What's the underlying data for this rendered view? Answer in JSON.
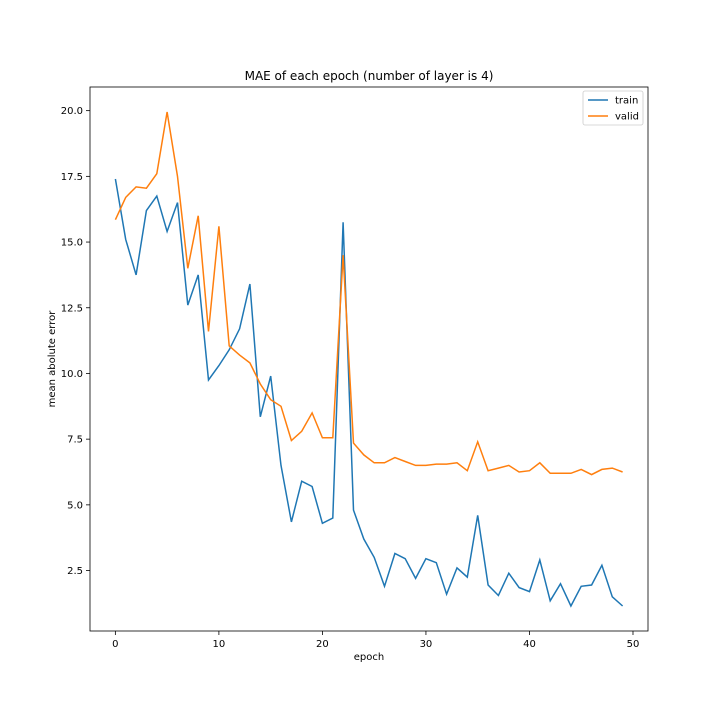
{
  "chart_data": {
    "type": "line",
    "title": "MAE of each epoch (number of layer is 4)",
    "xlabel": "epoch",
    "ylabel": "mean abolute error",
    "xlim": [
      -2.45,
      51.45
    ],
    "ylim": [
      0.2,
      20.9
    ],
    "xticks": [
      0,
      10,
      20,
      30,
      40,
      50
    ],
    "yticks": [
      2.5,
      5.0,
      7.5,
      10.0,
      12.5,
      15.0,
      17.5,
      20.0
    ],
    "ytick_labels": [
      "2.5",
      "5.0",
      "7.5",
      "10.0",
      "12.5",
      "15.0",
      "17.5",
      "20.0"
    ],
    "grid": false,
    "legend_position": "top-right",
    "x": [
      0,
      1,
      2,
      3,
      4,
      5,
      6,
      7,
      8,
      9,
      10,
      11,
      12,
      13,
      14,
      15,
      16,
      17,
      18,
      19,
      20,
      21,
      22,
      23,
      24,
      25,
      26,
      27,
      28,
      29,
      30,
      31,
      32,
      33,
      34,
      35,
      36,
      37,
      38,
      39,
      40,
      41,
      42,
      43,
      44,
      45,
      46,
      47,
      48,
      49
    ],
    "series": [
      {
        "name": "train",
        "color": "#1f77b4",
        "values": [
          17.4,
          15.1,
          13.75,
          16.2,
          16.75,
          15.4,
          16.5,
          12.6,
          13.75,
          9.75,
          10.3,
          10.9,
          11.7,
          13.4,
          8.35,
          9.9,
          6.5,
          4.35,
          5.9,
          5.7,
          4.3,
          4.5,
          15.75,
          4.8,
          3.7,
          3.0,
          1.9,
          3.15,
          2.95,
          2.2,
          2.95,
          2.8,
          1.6,
          2.6,
          2.25,
          4.6,
          1.95,
          1.55,
          2.4,
          1.85,
          1.7,
          2.9,
          1.35,
          2.0,
          1.15,
          1.9,
          1.95,
          2.7,
          1.5,
          1.15
        ]
      },
      {
        "name": "valid",
        "color": "#ff7f0e",
        "values": [
          15.85,
          16.7,
          17.1,
          17.05,
          17.6,
          19.95,
          17.5,
          14.0,
          16.0,
          11.6,
          15.6,
          11.05,
          10.7,
          10.4,
          9.6,
          9.0,
          8.75,
          7.45,
          7.8,
          8.5,
          7.55,
          7.55,
          14.5,
          7.35,
          6.9,
          6.6,
          6.6,
          6.8,
          6.65,
          6.5,
          6.5,
          6.55,
          6.55,
          6.6,
          6.3,
          7.4,
          6.3,
          6.4,
          6.5,
          6.25,
          6.3,
          6.6,
          6.2,
          6.2,
          6.2,
          6.35,
          6.15,
          6.35,
          6.4,
          6.25
        ]
      }
    ]
  }
}
